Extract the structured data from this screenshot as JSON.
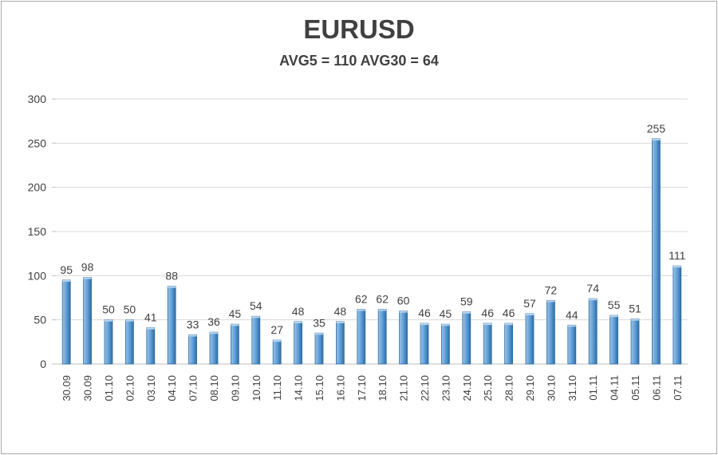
{
  "chart_data": {
    "type": "bar",
    "title": "EURUSD",
    "subtitle": "AVG5 = 110 AVG30 = 64",
    "categories": [
      "30.09",
      "30.09",
      "01.10",
      "02.10",
      "03.10",
      "04.10",
      "07.10",
      "08.10",
      "09.10",
      "10.10",
      "11.10",
      "14.10",
      "15.10",
      "16.10",
      "17.10",
      "18.10",
      "21.10",
      "22.10",
      "23.10",
      "24.10",
      "25.10",
      "28.10",
      "29.10",
      "30.10",
      "31.10",
      "01.11",
      "04.11",
      "05.11",
      "06.11",
      "07.11"
    ],
    "values": [
      95,
      98,
      50,
      50,
      41,
      88,
      33,
      36,
      45,
      54,
      27,
      48,
      35,
      48,
      62,
      62,
      60,
      46,
      45,
      59,
      46,
      46,
      57,
      72,
      44,
      74,
      55,
      51,
      255,
      111
    ],
    "data_labels": [
      "95",
      "98",
      "50",
      "50",
      "41",
      "88",
      "33",
      "36",
      "45",
      "54",
      "27",
      "48",
      "35",
      "48",
      "62",
      "62",
      "60",
      "46",
      "45",
      "59",
      "46",
      "46",
      "57",
      "72",
      "44",
      "74",
      "55",
      "51",
      "255",
      "111"
    ],
    "y_ticks": [
      "0",
      "50",
      "100",
      "150",
      "200",
      "250",
      "300"
    ],
    "ylim": [
      0,
      300
    ],
    "grid": true,
    "legend": "none",
    "colors": {
      "bar": "#5b9bd5",
      "bar_dark": "#2e6da4",
      "grid": "#d9d9d9",
      "text": "#404040"
    }
  }
}
